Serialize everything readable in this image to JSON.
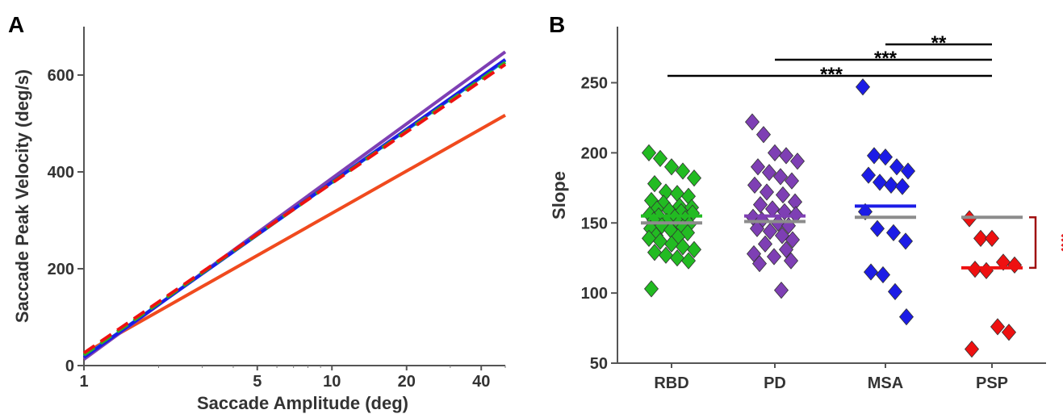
{
  "panel_a": {
    "letter": "A"
  },
  "panel_b": {
    "letter": "B"
  },
  "colors": {
    "RBD": "#22bb22",
    "PD": "#7e3fb4",
    "MSA": "#1c1ce6",
    "PSP": "#ee1111",
    "control": "#8c8c8c",
    "bracket": "#a01010",
    "psp_line_a": "#f04a1e",
    "cyan": "#17b6c2"
  },
  "chart_data": [
    {
      "type": "line",
      "panel": "A",
      "xlabel": "Saccade Amplitude (deg)",
      "ylabel": "Saccade Peak Velocity (deg/s)",
      "xscale": "log",
      "xlim": [
        1,
        50
      ],
      "ylim": [
        0,
        700
      ],
      "xticks": [
        1,
        5,
        10,
        20,
        40
      ],
      "yticks": [
        0,
        200,
        400,
        600
      ],
      "grid": false,
      "series": [
        {
          "color": "#f04a1e",
          "style": "solid",
          "x": [
            1,
            50
          ],
          "y": [
            25,
            517
          ]
        },
        {
          "color": "#7e3fb4",
          "style": "solid",
          "x": [
            1,
            50
          ],
          "y": [
            13,
            648
          ]
        },
        {
          "color": "#17b6c2",
          "style": "solid",
          "x": [
            1,
            50
          ],
          "y": [
            18,
            630
          ]
        },
        {
          "color": "#1c1ce6",
          "style": "solid",
          "x": [
            1,
            50
          ],
          "y": [
            17,
            632
          ]
        },
        {
          "color": "#22bb22",
          "style": "dashed",
          "x": [
            1,
            50
          ],
          "y": [
            22,
            626
          ]
        },
        {
          "color": "#ee1111",
          "style": "dashed",
          "x": [
            1,
            50
          ],
          "y": [
            26,
            622
          ]
        }
      ]
    },
    {
      "type": "scatter",
      "panel": "B",
      "ylabel": "Slope",
      "categories": [
        "RBD",
        "PD",
        "MSA",
        "PSP"
      ],
      "ylim": [
        50,
        290
      ],
      "yticks": [
        50,
        100,
        150,
        200,
        250
      ],
      "grid": false,
      "marker": "diamond",
      "series": [
        {
          "category": "RBD",
          "group_mean": 155,
          "control_mean": 150,
          "values": [
            200,
            196,
            190,
            187,
            182,
            178,
            172,
            171,
            169,
            166,
            164,
            162,
            161,
            160,
            159,
            158,
            157,
            156,
            155,
            154,
            153,
            152,
            151,
            150,
            149,
            148,
            147,
            146,
            145,
            143,
            141,
            140,
            139,
            137,
            135,
            133,
            131,
            129,
            127,
            125,
            123,
            103
          ]
        },
        {
          "category": "PD",
          "group_mean": 155,
          "control_mean": 151,
          "values": [
            222,
            213,
            200,
            198,
            194,
            190,
            186,
            183,
            180,
            177,
            172,
            170,
            165,
            163,
            160,
            158,
            156,
            154,
            152,
            150,
            148,
            146,
            144,
            141,
            138,
            135,
            131,
            128,
            126,
            123,
            121,
            102
          ]
        },
        {
          "category": "MSA",
          "group_mean": 162,
          "control_mean": 154,
          "values": [
            247,
            198,
            197,
            190,
            187,
            184,
            179,
            177,
            176,
            158,
            146,
            143,
            137,
            115,
            113,
            101,
            83
          ]
        },
        {
          "category": "PSP",
          "group_mean": 118,
          "control_mean": 154,
          "values": [
            153,
            139,
            139,
            122,
            120,
            117,
            116,
            76,
            72,
            60
          ]
        }
      ],
      "significance": [
        {
          "from": "RBD",
          "to": "PSP",
          "label": "***"
        },
        {
          "from": "PD",
          "to": "PSP",
          "label": "***"
        },
        {
          "from": "MSA",
          "to": "PSP",
          "label": "**"
        },
        {
          "between": "PSP vs control",
          "label": "**"
        }
      ]
    }
  ]
}
